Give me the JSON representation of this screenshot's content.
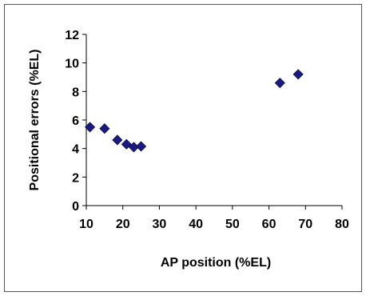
{
  "chart_data": {
    "type": "scatter",
    "xlabel": "AP position (%EL)",
    "ylabel": "Positional errors (%EL)",
    "xlim": [
      10,
      80
    ],
    "ylim": [
      0,
      12
    ],
    "xticks": [
      10,
      20,
      30,
      40,
      50,
      60,
      70,
      80
    ],
    "yticks": [
      0,
      2,
      4,
      6,
      8,
      10,
      12
    ],
    "grid": false,
    "legend": "none",
    "marker": "diamond",
    "marker_color": "#1a1a80",
    "series": [
      {
        "points": [
          {
            "x": 11,
            "y": 5.5
          },
          {
            "x": 15,
            "y": 5.4
          },
          {
            "x": 18.5,
            "y": 4.6
          },
          {
            "x": 21,
            "y": 4.3
          },
          {
            "x": 23,
            "y": 4.1
          },
          {
            "x": 25,
            "y": 4.15
          },
          {
            "x": 63,
            "y": 8.6
          },
          {
            "x": 68,
            "y": 9.2
          }
        ]
      }
    ]
  }
}
